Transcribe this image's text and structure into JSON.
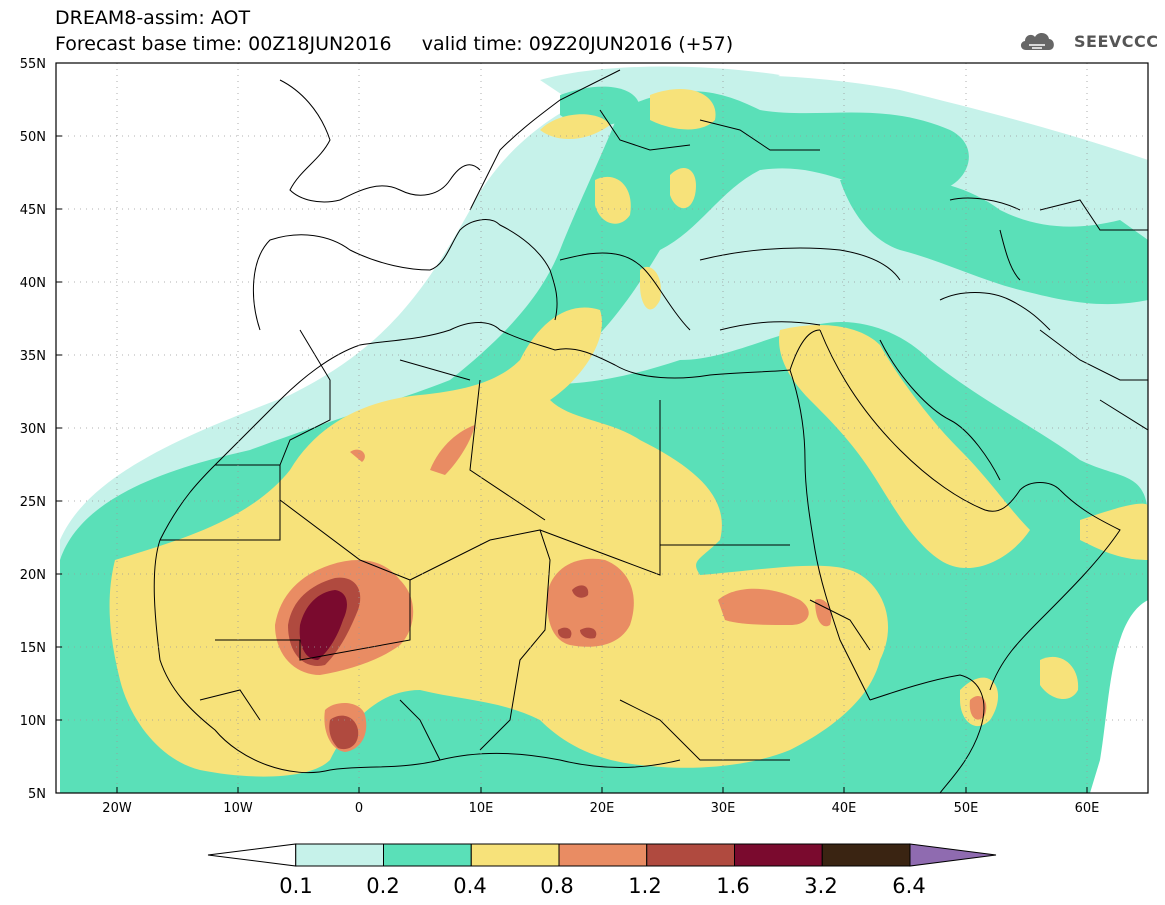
{
  "title": {
    "line1": "DREAM8-assim: AOT",
    "base_time": "Forecast base time: 00Z18JUN2016",
    "valid_time": "valid time: 09Z20JUN2016 (+57)"
  },
  "logo": {
    "text": "SEEVCCC"
  },
  "axes": {
    "lat_labels": [
      "55N",
      "50N",
      "45N",
      "40N",
      "35N",
      "30N",
      "25N",
      "20N",
      "15N",
      "10N",
      "5N"
    ],
    "lon_labels": [
      "20W",
      "10W",
      "0",
      "10E",
      "20E",
      "30E",
      "40E",
      "50E",
      "60E"
    ]
  },
  "legend": {
    "labels": [
      "0.1",
      "0.2",
      "0.4",
      "0.8",
      "1.2",
      "1.6",
      "3.2",
      "6.4"
    ],
    "colors": [
      "#ffffff",
      "#c6f2ea",
      "#5ae0b8",
      "#f7e27a",
      "#e98c63",
      "#b04a3f",
      "#7a0a2e",
      "#3a2412",
      "#8f6bb0"
    ]
  }
}
